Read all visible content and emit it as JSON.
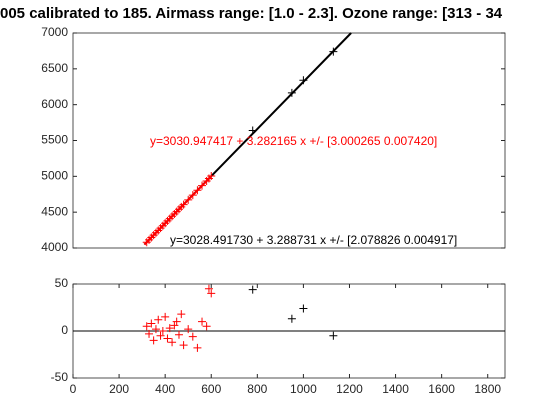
{
  "chart_data": [
    {
      "type": "scatter",
      "title": "005 calibrated to 185. Airmass range: [1.0 - 2.3]. Ozone range: [313 - 34",
      "annotations": [
        {
          "text": "y=3030.947417 + 3.282165 x +/- [3.000265 0.007420]",
          "color": "#ff0000"
        },
        {
          "text": "y=3028.491730 + 3.288731 x +/- [2.078826 0.004917]",
          "color": "#000000"
        }
      ],
      "xlim": [
        0,
        1875
      ],
      "ylim": [
        4000,
        7000
      ],
      "yticks": [
        4000,
        4500,
        5000,
        5500,
        6000,
        6500,
        7000
      ],
      "series": [
        {
          "mode": "line",
          "color": "#000000",
          "x": [
            310,
            1207
          ],
          "values": [
            4048,
            7000
          ]
        },
        {
          "mode": "line",
          "color": "#ff0000",
          "x": [
            310,
            600
          ],
          "values": [
            4048,
            5000
          ]
        },
        {
          "mode": "marker",
          "color": "#ff0000",
          "x": [
            320,
            330,
            340,
            350,
            360,
            370,
            380,
            390,
            400,
            410,
            420,
            430,
            440,
            450,
            460,
            470,
            480,
            500,
            520,
            540,
            560,
            580,
            590,
            600
          ],
          "values": [
            4080,
            4113,
            4146,
            4180,
            4212,
            4245,
            4278,
            4311,
            4345,
            4378,
            4410,
            4443,
            4475,
            4508,
            4541,
            4574,
            4606,
            4672,
            4738,
            4805,
            4870,
            4935,
            4970,
            5005
          ]
        },
        {
          "mode": "marker",
          "color": "#000000",
          "x": [
            780,
            950,
            1000,
            1130
          ],
          "values": [
            5640,
            6165,
            6340,
            6740
          ]
        }
      ]
    },
    {
      "type": "scatter",
      "xlim": [
        0,
        1875
      ],
      "ylim": [
        -50,
        50
      ],
      "xticks": [
        0,
        200,
        400,
        600,
        800,
        1000,
        1200,
        1400,
        1600,
        1800
      ],
      "yticks": [
        -50,
        0,
        50
      ],
      "reference_line": 0,
      "series": [
        {
          "mode": "marker",
          "color": "#ff0000",
          "x": [
            320,
            330,
            340,
            350,
            360,
            370,
            380,
            390,
            400,
            410,
            420,
            430,
            440,
            450,
            460,
            470,
            480,
            500,
            520,
            540,
            560,
            580,
            590,
            600
          ],
          "values": [
            5,
            -3,
            8,
            -10,
            2,
            12,
            -5,
            0,
            15,
            -8,
            3,
            -12,
            6,
            10,
            -4,
            18,
            -15,
            2,
            -6,
            -18,
            10,
            5,
            45,
            40
          ]
        },
        {
          "mode": "marker",
          "color": "#000000",
          "x": [
            780,
            950,
            1000,
            1130
          ],
          "values": [
            44,
            13,
            24,
            -5
          ]
        }
      ]
    }
  ]
}
